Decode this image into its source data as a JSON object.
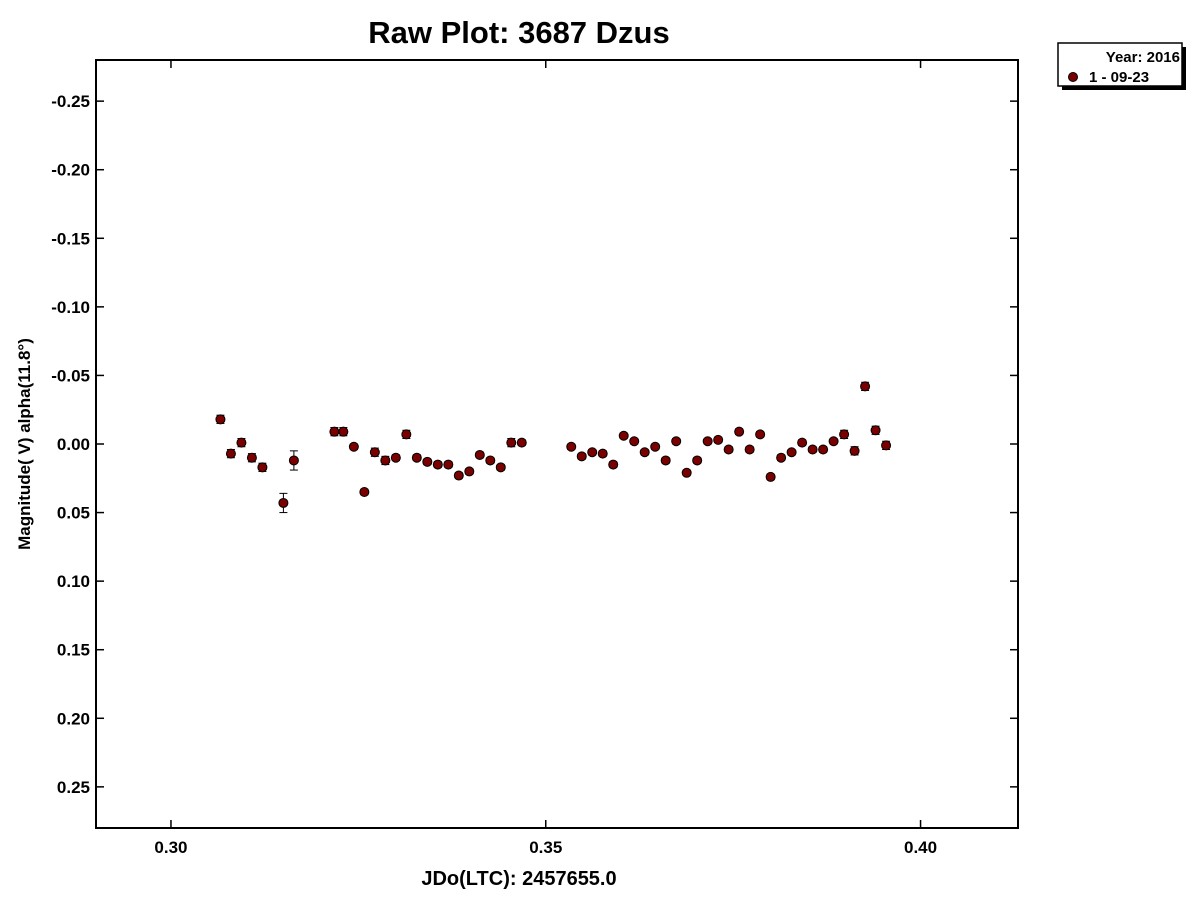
{
  "chart_data": {
    "type": "scatter",
    "title": "Raw Plot: 3687 Dzus",
    "xlabel": "JDo(LTC): 2457655.0",
    "ylabel": "Magnitude( V) alpha(11.8°)",
    "xlim": [
      0.29,
      0.413
    ],
    "ylim": [
      -0.28,
      0.28
    ],
    "y_inverted": true,
    "x_ticks": [
      "0.30",
      "0.35",
      "0.40"
    ],
    "x_tick_values": [
      0.3,
      0.35,
      0.4
    ],
    "y_ticks": [
      "-0.25",
      "-0.20",
      "-0.15",
      "-0.10",
      "-0.05",
      "0.00",
      "0.05",
      "0.10",
      "0.15",
      "0.20",
      "0.25"
    ],
    "y_tick_values": [
      -0.25,
      -0.2,
      -0.15,
      -0.1,
      -0.05,
      0.0,
      0.05,
      0.1,
      0.15,
      0.2,
      0.25
    ],
    "legend": {
      "title": "Year: 2016",
      "position": "top-right, outside plot"
    },
    "series": [
      {
        "name": "1 - 09-23",
        "color": "#7a0000",
        "x": [
          0.3066,
          0.308,
          0.3094,
          0.3108,
          0.3122,
          0.315,
          0.3164,
          0.3218,
          0.323,
          0.3244,
          0.3258,
          0.3272,
          0.3286,
          0.33,
          0.3314,
          0.3328,
          0.3342,
          0.3356,
          0.337,
          0.3384,
          0.3398,
          0.3412,
          0.3426,
          0.344,
          0.3454,
          0.3468,
          0.3534,
          0.3548,
          0.3562,
          0.3576,
          0.359,
          0.3604,
          0.3618,
          0.3632,
          0.3646,
          0.366,
          0.3674,
          0.3688,
          0.3702,
          0.3716,
          0.373,
          0.3744,
          0.3758,
          0.3772,
          0.3786,
          0.38,
          0.3814,
          0.3828,
          0.3842,
          0.3856,
          0.387,
          0.3884,
          0.3898,
          0.3912,
          0.3926,
          0.394,
          0.3954
        ],
        "values": [
          -0.018,
          0.007,
          -0.001,
          0.01,
          0.017,
          0.043,
          0.012,
          -0.009,
          -0.009,
          0.002,
          0.035,
          0.006,
          0.012,
          0.01,
          -0.007,
          0.01,
          0.013,
          0.015,
          0.015,
          0.023,
          0.02,
          0.008,
          0.012,
          0.017,
          -0.001,
          -0.001,
          0.002,
          0.009,
          0.006,
          0.007,
          0.015,
          -0.006,
          -0.002,
          0.006,
          0.002,
          0.012,
          -0.002,
          0.021,
          0.012,
          -0.002,
          -0.003,
          0.004,
          -0.009,
          0.004,
          -0.007,
          0.024,
          0.01,
          0.006,
          -0.001,
          0.004,
          0.004,
          -0.002,
          -0.007,
          0.005,
          -0.042,
          -0.01,
          0.001
        ],
        "errors": [
          0.003,
          0.003,
          0.003,
          0.003,
          0.003,
          0.007,
          0.007,
          0.003,
          0.003,
          0.002,
          0.002,
          0.003,
          0.003,
          0.002,
          0.003,
          0.002,
          0.002,
          0.002,
          0.002,
          0.002,
          0.002,
          0.002,
          0.002,
          0.002,
          0.003,
          0.002,
          0.002,
          0.002,
          0.002,
          0.002,
          0.002,
          0.002,
          0.002,
          0.002,
          0.002,
          0.002,
          0.002,
          0.002,
          0.002,
          0.002,
          0.002,
          0.002,
          0.002,
          0.002,
          0.002,
          0.002,
          0.002,
          0.002,
          0.002,
          0.002,
          0.002,
          0.002,
          0.003,
          0.003,
          0.003,
          0.003,
          0.003
        ]
      }
    ]
  }
}
